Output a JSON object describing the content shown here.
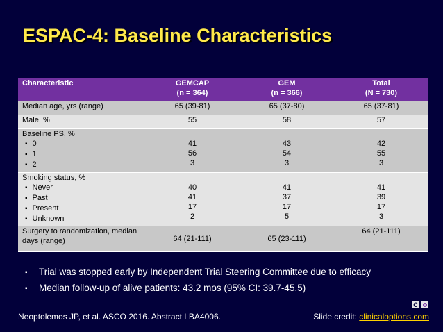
{
  "title": "ESPAC-4: Baseline Characteristics",
  "table": {
    "headers": {
      "characteristic": "Characteristic",
      "gemcap": [
        "GEMCAP",
        "(n = 364)"
      ],
      "gem": [
        "GEM",
        "(n = 366)"
      ],
      "total": [
        "Total",
        "(N = 730)"
      ]
    },
    "rows": [
      {
        "label": "Median age, yrs (range)",
        "gemcap": "65 (39-81)",
        "gem": "65 (37-80)",
        "total": "65 (37-81)"
      },
      {
        "label": "Male, %",
        "gemcap": "55",
        "gem": "58",
        "total": "57"
      },
      {
        "label": "Baseline PS, %",
        "subs": [
          "0",
          "1",
          "2"
        ],
        "gemcap": [
          "41",
          "56",
          "3"
        ],
        "gem": [
          "43",
          "54",
          "3"
        ],
        "total": [
          "42",
          "55",
          "3"
        ]
      },
      {
        "label": "Smoking status, %",
        "subs": [
          "Never",
          "Past",
          "Present",
          "Unknown"
        ],
        "gemcap": [
          "40",
          "41",
          "17",
          "2"
        ],
        "gem": [
          "41",
          "37",
          "17",
          "5"
        ],
        "total": [
          "41",
          "39",
          "17",
          "3"
        ]
      },
      {
        "label": [
          "Surgery to randomization, median",
          "days (range)"
        ],
        "gemcap": "64 (21-111)",
        "gem": "65 (23-111)",
        "total": "64 (21-111)"
      }
    ]
  },
  "bullets": [
    "Trial was stopped early by Independent Trial Steering Committee due to efficacy",
    "Median follow-up of alive patients: 43.2 mos (95% CI: 39.7-45.5)"
  ],
  "footer": {
    "citation": "Neoptolemos JP, et al. ASCO 2016. Abstract LBA4006.",
    "credit_prefix": "Slide credit: ",
    "credit_link": "clinicaloptions.com"
  },
  "logo": {
    "letter": "C"
  }
}
